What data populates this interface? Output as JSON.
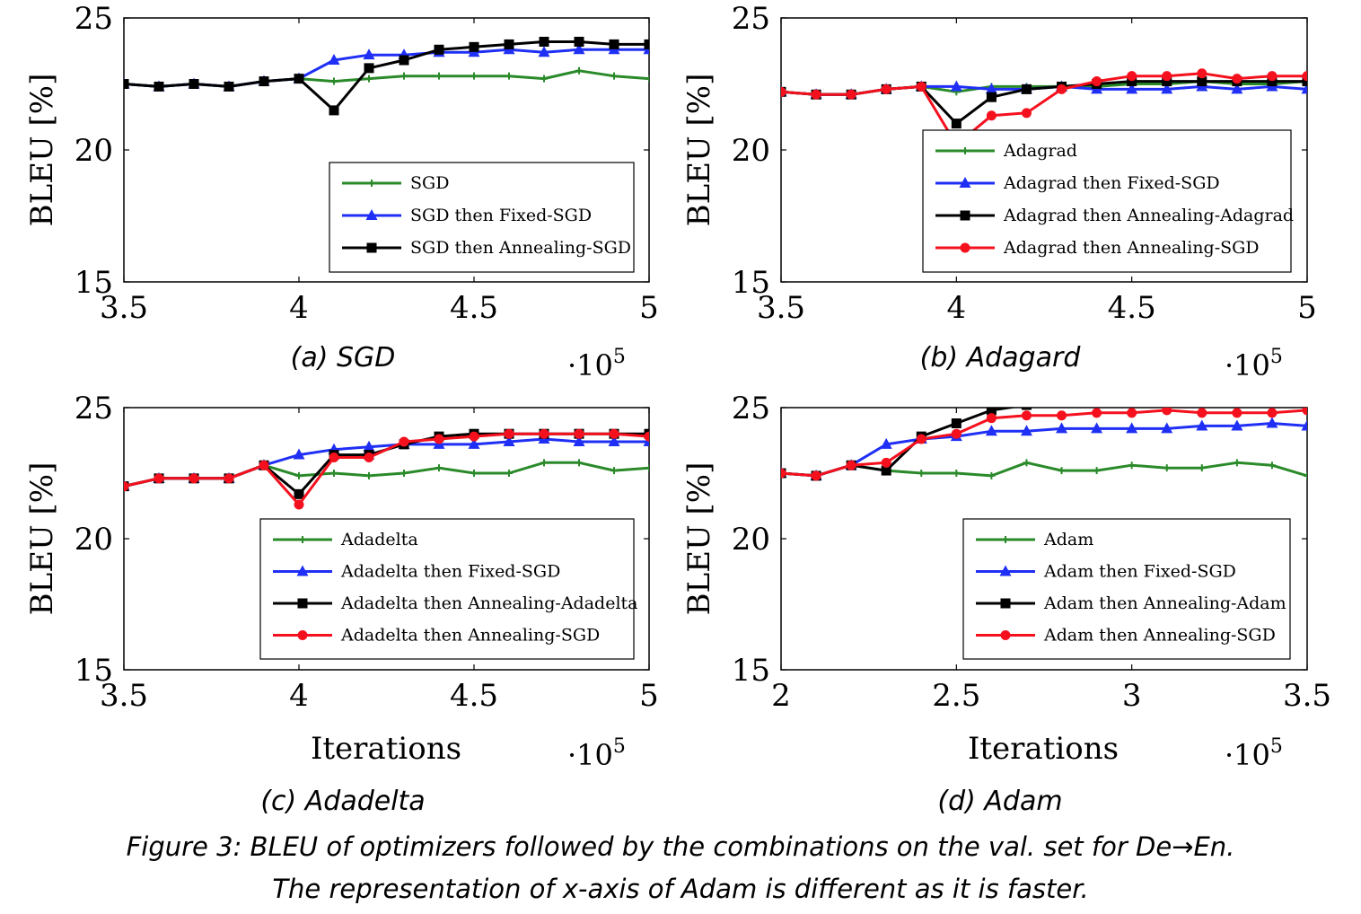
{
  "figure_caption": {
    "line1": "Figure 3: BLEU of optimizers followed by the combinations on the val. set for De→En.",
    "line2": "The representation of x-axis of Adam is different as it is faster."
  },
  "colors": {
    "green": "#2a8a2a",
    "blue": "#1f2ff5",
    "black": "#000000",
    "red": "#f5101e"
  },
  "chart_data": [
    {
      "type": "line",
      "caption": "(a) SGD",
      "ylabel": "BLEU [%]",
      "xlabel": "",
      "x_multiplier": "·10",
      "x_multiplier_exp": "5",
      "xlim": [
        3.5,
        5
      ],
      "ylim": [
        15,
        25
      ],
      "xticks": [
        "3.5",
        "4",
        "4.5",
        "5"
      ],
      "yticks": [
        "15",
        "20",
        "25"
      ],
      "legend_position": "center-right",
      "series": [
        {
          "name": "SGD",
          "color": "green",
          "marker": "plus",
          "x": [
            3.5,
            3.6,
            3.7,
            3.8,
            3.9,
            4.0,
            4.1,
            4.2,
            4.3,
            4.4,
            4.5,
            4.6,
            4.7,
            4.8,
            4.9,
            5.0
          ],
          "y": [
            22.5,
            22.4,
            22.5,
            22.4,
            22.6,
            22.7,
            22.6,
            22.7,
            22.8,
            22.8,
            22.8,
            22.8,
            22.7,
            23.0,
            22.8,
            22.7
          ]
        },
        {
          "name": "SGD then Fixed-SGD",
          "color": "blue",
          "marker": "triangle",
          "x": [
            3.5,
            3.6,
            3.7,
            3.8,
            3.9,
            4.0,
            4.1,
            4.2,
            4.3,
            4.4,
            4.5,
            4.6,
            4.7,
            4.8,
            4.9,
            5.0
          ],
          "y": [
            22.5,
            22.4,
            22.5,
            22.4,
            22.6,
            22.7,
            23.4,
            23.6,
            23.6,
            23.7,
            23.7,
            23.8,
            23.7,
            23.8,
            23.8,
            23.8
          ]
        },
        {
          "name": "SGD then Annealing-SGD",
          "color": "black",
          "marker": "square",
          "x": [
            3.5,
            3.6,
            3.7,
            3.8,
            3.9,
            4.0,
            4.1,
            4.2,
            4.3,
            4.4,
            4.5,
            4.6,
            4.7,
            4.8,
            4.9,
            5.0
          ],
          "y": [
            22.5,
            22.4,
            22.5,
            22.4,
            22.6,
            22.7,
            21.5,
            23.1,
            23.4,
            23.8,
            23.9,
            24.0,
            24.1,
            24.1,
            24.0,
            24.0
          ]
        }
      ]
    },
    {
      "type": "line",
      "caption": "(b) Adagard",
      "ylabel": "BLEU [%]",
      "xlabel": "",
      "x_multiplier": "·10",
      "x_multiplier_exp": "5",
      "xlim": [
        3.5,
        5
      ],
      "ylim": [
        15,
        25
      ],
      "xticks": [
        "3.5",
        "4",
        "4.5",
        "5"
      ],
      "yticks": [
        "15",
        "20",
        "25"
      ],
      "legend_position": "center-right",
      "series": [
        {
          "name": "Adagrad",
          "color": "green",
          "marker": "plus",
          "x": [
            3.5,
            3.6,
            3.7,
            3.8,
            3.9,
            4.0,
            4.1,
            4.2,
            4.3,
            4.4,
            4.5,
            4.6,
            4.7,
            4.8,
            4.9,
            5.0
          ],
          "y": [
            22.2,
            22.1,
            22.1,
            22.3,
            22.4,
            22.2,
            22.4,
            22.4,
            22.4,
            22.4,
            22.5,
            22.5,
            22.6,
            22.5,
            22.5,
            22.6
          ]
        },
        {
          "name": "Adagrad then Fixed-SGD",
          "color": "blue",
          "marker": "triangle",
          "x": [
            3.5,
            3.6,
            3.7,
            3.8,
            3.9,
            4.0,
            4.1,
            4.2,
            4.3,
            4.4,
            4.5,
            4.6,
            4.7,
            4.8,
            4.9,
            5.0
          ],
          "y": [
            22.2,
            22.1,
            22.1,
            22.3,
            22.4,
            22.4,
            22.3,
            22.3,
            22.4,
            22.3,
            22.3,
            22.3,
            22.4,
            22.3,
            22.4,
            22.3
          ]
        },
        {
          "name": "Adagrad then Annealing-Adagrad",
          "color": "black",
          "marker": "square",
          "x": [
            3.5,
            3.6,
            3.7,
            3.8,
            3.9,
            4.0,
            4.1,
            4.2,
            4.3,
            4.4,
            4.5,
            4.6,
            4.7,
            4.8,
            4.9,
            5.0
          ],
          "y": [
            22.2,
            22.1,
            22.1,
            22.3,
            22.4,
            21.0,
            22.0,
            22.3,
            22.4,
            22.5,
            22.6,
            22.6,
            22.6,
            22.6,
            22.6,
            22.6
          ]
        },
        {
          "name": "Adagrad then Annealing-SGD",
          "color": "red",
          "marker": "circle",
          "x": [
            3.5,
            3.6,
            3.7,
            3.8,
            3.9,
            4.0,
            4.1,
            4.2,
            4.3,
            4.4,
            4.5,
            4.6,
            4.7,
            4.8,
            4.9,
            5.0
          ],
          "y": [
            22.2,
            22.1,
            22.1,
            22.3,
            22.4,
            20.2,
            21.3,
            21.4,
            22.3,
            22.6,
            22.8,
            22.8,
            22.9,
            22.7,
            22.8,
            22.8
          ]
        }
      ]
    },
    {
      "type": "line",
      "caption": "(c) Adadelta",
      "ylabel": "BLEU [%]",
      "xlabel": "Iterations",
      "x_multiplier": "·10",
      "x_multiplier_exp": "5",
      "xlim": [
        3.5,
        5
      ],
      "ylim": [
        15,
        25
      ],
      "xticks": [
        "3.5",
        "4",
        "4.5",
        "5"
      ],
      "yticks": [
        "15",
        "20",
        "25"
      ],
      "legend_position": "center-right",
      "series": [
        {
          "name": "Adadelta",
          "color": "green",
          "marker": "plus",
          "x": [
            3.5,
            3.6,
            3.7,
            3.8,
            3.9,
            4.0,
            4.1,
            4.2,
            4.3,
            4.4,
            4.5,
            4.6,
            4.7,
            4.8,
            4.9,
            5.0
          ],
          "y": [
            22.0,
            22.3,
            22.3,
            22.3,
            22.8,
            22.4,
            22.5,
            22.4,
            22.5,
            22.7,
            22.5,
            22.5,
            22.9,
            22.9,
            22.6,
            22.7
          ]
        },
        {
          "name": "Adadelta then Fixed-SGD",
          "color": "blue",
          "marker": "triangle",
          "x": [
            3.5,
            3.6,
            3.7,
            3.8,
            3.9,
            4.0,
            4.1,
            4.2,
            4.3,
            4.4,
            4.5,
            4.6,
            4.7,
            4.8,
            4.9,
            5.0
          ],
          "y": [
            22.0,
            22.3,
            22.3,
            22.3,
            22.8,
            23.2,
            23.4,
            23.5,
            23.6,
            23.6,
            23.6,
            23.7,
            23.8,
            23.7,
            23.7,
            23.7
          ]
        },
        {
          "name": "Adadelta then Annealing-Adadelta",
          "color": "black",
          "marker": "square",
          "x": [
            3.5,
            3.6,
            3.7,
            3.8,
            3.9,
            4.0,
            4.1,
            4.2,
            4.3,
            4.4,
            4.5,
            4.6,
            4.7,
            4.8,
            4.9,
            5.0
          ],
          "y": [
            22.0,
            22.3,
            22.3,
            22.3,
            22.8,
            21.7,
            23.2,
            23.2,
            23.6,
            23.9,
            24.0,
            24.0,
            24.0,
            24.0,
            24.0,
            24.0
          ]
        },
        {
          "name": "Adadelta then Annealing-SGD",
          "color": "red",
          "marker": "circle",
          "x": [
            3.5,
            3.6,
            3.7,
            3.8,
            3.9,
            4.0,
            4.1,
            4.2,
            4.3,
            4.4,
            4.5,
            4.6,
            4.7,
            4.8,
            4.9,
            5.0
          ],
          "y": [
            22.0,
            22.3,
            22.3,
            22.3,
            22.8,
            21.3,
            23.1,
            23.1,
            23.7,
            23.8,
            23.9,
            24.0,
            24.0,
            24.0,
            24.0,
            23.9
          ]
        }
      ]
    },
    {
      "type": "line",
      "caption": "(d) Adam",
      "ylabel": "BLEU [%]",
      "xlabel": "Iterations",
      "x_multiplier": "·10",
      "x_multiplier_exp": "5",
      "xlim": [
        2,
        3.5
      ],
      "ylim": [
        15,
        25
      ],
      "xticks": [
        "2",
        "2.5",
        "3",
        "3.5"
      ],
      "yticks": [
        "15",
        "20",
        "25"
      ],
      "legend_position": "center-right",
      "series": [
        {
          "name": "Adam",
          "color": "green",
          "marker": "plus",
          "x": [
            2.0,
            2.1,
            2.2,
            2.3,
            2.4,
            2.5,
            2.6,
            2.7,
            2.8,
            2.9,
            3.0,
            3.1,
            3.2,
            3.3,
            3.4,
            3.5
          ],
          "y": [
            22.5,
            22.4,
            22.8,
            22.6,
            22.5,
            22.5,
            22.4,
            22.9,
            22.6,
            22.6,
            22.8,
            22.7,
            22.7,
            22.9,
            22.8,
            22.4
          ]
        },
        {
          "name": "Adam then Fixed-SGD",
          "color": "blue",
          "marker": "triangle",
          "x": [
            2.0,
            2.1,
            2.2,
            2.3,
            2.4,
            2.5,
            2.6,
            2.7,
            2.8,
            2.9,
            3.0,
            3.1,
            3.2,
            3.3,
            3.4,
            3.5
          ],
          "y": [
            22.5,
            22.4,
            22.8,
            23.6,
            23.8,
            23.9,
            24.1,
            24.1,
            24.2,
            24.2,
            24.2,
            24.2,
            24.3,
            24.3,
            24.4,
            24.3
          ]
        },
        {
          "name": "Adam then Annealing-Adam",
          "color": "black",
          "marker": "square",
          "x": [
            2.0,
            2.1,
            2.2,
            2.3,
            2.4,
            2.5,
            2.6,
            2.7,
            2.8,
            2.9,
            3.0,
            3.1,
            3.2,
            3.3,
            3.4,
            3.5
          ],
          "y": [
            22.5,
            22.4,
            22.8,
            22.6,
            23.9,
            24.4,
            24.9,
            25.1,
            25.2,
            25.3,
            25.3,
            25.4,
            25.3,
            25.3,
            25.3,
            25.3
          ]
        },
        {
          "name": "Adam then Annealing-SGD",
          "color": "red",
          "marker": "circle",
          "x": [
            2.0,
            2.1,
            2.2,
            2.3,
            2.4,
            2.5,
            2.6,
            2.7,
            2.8,
            2.9,
            3.0,
            3.1,
            3.2,
            3.3,
            3.4,
            3.5
          ],
          "y": [
            22.5,
            22.4,
            22.8,
            22.9,
            23.8,
            24.0,
            24.6,
            24.7,
            24.7,
            24.8,
            24.8,
            24.9,
            24.8,
            24.8,
            24.8,
            24.9
          ]
        }
      ]
    }
  ]
}
